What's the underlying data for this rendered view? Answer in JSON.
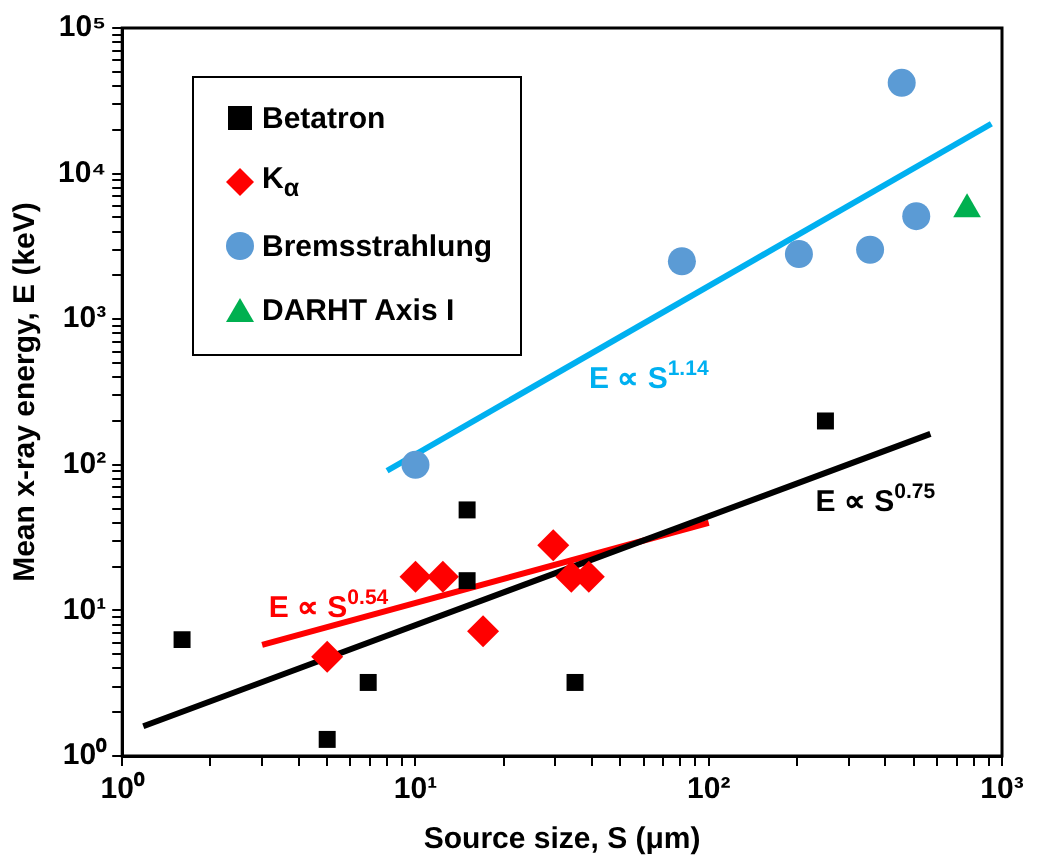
{
  "chart_data": {
    "type": "scatter",
    "xlabel": "Source size, S (μm)",
    "ylabel": "Mean x-ray energy, E (keV)",
    "log": "xy",
    "grid": false,
    "legend": "top left",
    "xlim": [
      1,
      1000
    ],
    "ylim": [
      1,
      100000
    ],
    "xticks": [
      {
        "value": 1,
        "label": "10⁰"
      },
      {
        "value": 2,
        "label": null
      },
      {
        "value": 3,
        "label": null
      },
      {
        "value": 4,
        "label": null
      },
      {
        "value": 5,
        "label": null
      },
      {
        "value": 6,
        "label": null
      },
      {
        "value": 7,
        "label": null
      },
      {
        "value": 8,
        "label": null
      },
      {
        "value": 9,
        "label": null
      },
      {
        "value": 10,
        "label": "10¹"
      },
      {
        "value": 20,
        "label": null
      },
      {
        "value": 30,
        "label": null
      },
      {
        "value": 40,
        "label": null
      },
      {
        "value": 50,
        "label": null
      },
      {
        "value": 60,
        "label": null
      },
      {
        "value": 70,
        "label": null
      },
      {
        "value": 80,
        "label": null
      },
      {
        "value": 90,
        "label": null
      },
      {
        "value": 100,
        "label": "10²"
      },
      {
        "value": 200,
        "label": null
      },
      {
        "value": 300,
        "label": null
      },
      {
        "value": 400,
        "label": null
      },
      {
        "value": 500,
        "label": null
      },
      {
        "value": 600,
        "label": null
      },
      {
        "value": 700,
        "label": null
      },
      {
        "value": 800,
        "label": null
      },
      {
        "value": 900,
        "label": null
      },
      {
        "value": 1000,
        "label": "10³"
      }
    ],
    "yticks": [
      {
        "value": 1,
        "label": "10⁰"
      },
      {
        "value": 2,
        "label": null
      },
      {
        "value": 3,
        "label": null
      },
      {
        "value": 4,
        "label": null
      },
      {
        "value": 5,
        "label": null
      },
      {
        "value": 6,
        "label": null
      },
      {
        "value": 7,
        "label": null
      },
      {
        "value": 8,
        "label": null
      },
      {
        "value": 9,
        "label": null
      },
      {
        "value": 10,
        "label": "10¹"
      },
      {
        "value": 20,
        "label": null
      },
      {
        "value": 30,
        "label": null
      },
      {
        "value": 40,
        "label": null
      },
      {
        "value": 50,
        "label": null
      },
      {
        "value": 60,
        "label": null
      },
      {
        "value": 70,
        "label": null
      },
      {
        "value": 80,
        "label": null
      },
      {
        "value": 90,
        "label": null
      },
      {
        "value": 100,
        "label": "10²"
      },
      {
        "value": 200,
        "label": null
      },
      {
        "value": 300,
        "label": null
      },
      {
        "value": 400,
        "label": null
      },
      {
        "value": 500,
        "label": null
      },
      {
        "value": 600,
        "label": null
      },
      {
        "value": 700,
        "label": null
      },
      {
        "value": 800,
        "label": null
      },
      {
        "value": 900,
        "label": null
      },
      {
        "value": 1000,
        "label": "10³"
      },
      {
        "value": 2000,
        "label": null
      },
      {
        "value": 3000,
        "label": null
      },
      {
        "value": 4000,
        "label": null
      },
      {
        "value": 5000,
        "label": null
      },
      {
        "value": 6000,
        "label": null
      },
      {
        "value": 7000,
        "label": null
      },
      {
        "value": 8000,
        "label": null
      },
      {
        "value": 9000,
        "label": null
      },
      {
        "value": 10000,
        "label": "10⁴"
      },
      {
        "value": 20000,
        "label": null
      },
      {
        "value": 30000,
        "label": null
      },
      {
        "value": 40000,
        "label": null
      },
      {
        "value": 50000,
        "label": null
      },
      {
        "value": 60000,
        "label": null
      },
      {
        "value": 70000,
        "label": null
      },
      {
        "value": 80000,
        "label": null
      },
      {
        "value": 90000,
        "label": null
      },
      {
        "value": 100000,
        "label": "10⁵"
      }
    ],
    "series": [
      {
        "name": "Betatron",
        "marker": "square",
        "color": "#000000",
        "x": [
          1.6,
          5,
          6.9,
          15,
          15,
          35,
          250
        ],
        "values": [
          6.3,
          1.3,
          3.2,
          49,
          16,
          3.2,
          200
        ]
      },
      {
        "name": "K$_{α}$",
        "marker": "diamond",
        "color": "#ff0000",
        "x": [
          5,
          10,
          12.4,
          17,
          29.5,
          34,
          39
        ],
        "values": [
          4.8,
          17,
          17,
          7.2,
          28,
          17,
          17
        ]
      },
      {
        "name": "Bremsstrahlung",
        "marker": "circle",
        "color": "#5b9bd5",
        "x": [
          10,
          81,
          203,
          355,
          455,
          510
        ],
        "values": [
          100,
          2500,
          2800,
          3000,
          42000,
          5100
        ]
      },
      {
        "name": "DARHT Axis I",
        "marker": "triangle",
        "color": "#00b050",
        "x": [
          760
        ],
        "values": [
          5700
        ]
      },
      {
        "name": "E ∝ S$^{0.75}$",
        "type": "line",
        "marker": "none",
        "line_style": "solid",
        "color": "#000000",
        "x": [
          1.18,
          570
        ],
        "values": [
          1.6,
          163
        ]
      },
      {
        "name": "E ∝ S$^{0.54}$",
        "type": "line",
        "marker": "none",
        "line_style": "solid",
        "color": "#ff0000",
        "x": [
          3,
          100
        ],
        "values": [
          5.8,
          40
        ]
      },
      {
        "name": "E ∝ S$^{1.14}$",
        "type": "line",
        "marker": "none",
        "line_style": "solid",
        "color": "#00b0f0",
        "x": [
          8,
          920
        ],
        "values": [
          91,
          22000
        ]
      }
    ]
  }
}
